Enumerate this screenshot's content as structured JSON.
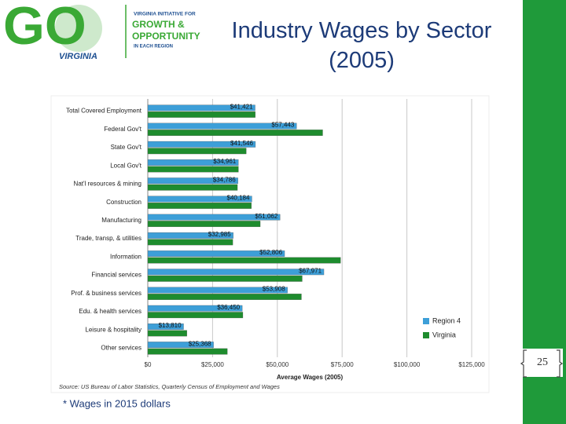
{
  "slide": {
    "logo": {
      "mark": "GO",
      "state": "VIRGINIA",
      "line1": "VIRGINIA INITIATIVE FOR",
      "line2": "GROWTH &",
      "line3": "OPPORTUNITY",
      "line4": "IN EACH REGION"
    },
    "footnote": "* Wages in 2015 dollars",
    "page_number": "25"
  },
  "chart_data": {
    "type": "barh",
    "title": "Industry Wages by Sector (2005)",
    "categories": [
      "Total Covered Employment",
      "Federal Gov't",
      "State Gov't",
      "Local Gov't",
      "Nat'l resources & mining",
      "Construction",
      "Manufacturing",
      "Trade, transp, & utilities",
      "Information",
      "Financial services",
      "Prof. & business services",
      "Edu. & health services",
      "Leisure & hospitality",
      "Other services"
    ],
    "series": [
      {
        "name": "Region 4",
        "color": "#3d9fd8",
        "values": [
          41421,
          57443,
          41546,
          34961,
          34786,
          40184,
          51062,
          32985,
          52806,
          67971,
          53908,
          36450,
          13810,
          25368
        ],
        "value_labels": [
          "$41,421",
          "$57,443",
          "$41,546",
          "$34,961",
          "$34,786",
          "$40,184",
          "$51,062",
          "$32,985",
          "$52,806",
          "$67,971",
          "$53,908",
          "$36,450",
          "$13,810",
          "$25,368"
        ]
      },
      {
        "name": "Virginia",
        "color": "#1e8c2e",
        "values": [
          41500,
          67500,
          38000,
          35000,
          34600,
          40000,
          43400,
          32800,
          74400,
          59600,
          59300,
          36700,
          15100,
          30700
        ]
      }
    ],
    "xlim": [
      0,
      125000
    ],
    "xticks": [
      {
        "value": 0,
        "label": "$0"
      },
      {
        "value": 25000,
        "label": "$25,000"
      },
      {
        "value": 50000,
        "label": "$50,000"
      },
      {
        "value": 75000,
        "label": "$75,000"
      },
      {
        "value": 100000,
        "label": "$100,000"
      },
      {
        "value": 125000,
        "label": "$125,000"
      }
    ],
    "xlabel": "Average Wages (2005)",
    "source": "Source: US Bureau of Labor Statistics, Quarterly Census of Employment and Wages",
    "grid": true,
    "legend": "lower right"
  }
}
